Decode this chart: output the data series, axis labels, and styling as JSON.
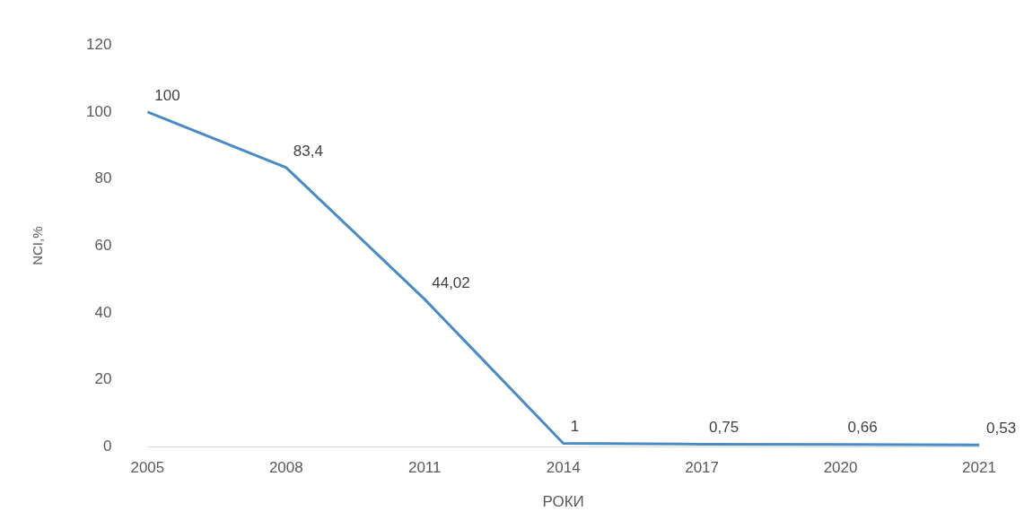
{
  "chart_data": {
    "type": "line",
    "xlabel": "РОКИ",
    "ylabel": "NCI,%",
    "categories": [
      "2005",
      "2008",
      "2011",
      "2014",
      "2017",
      "2020",
      "2021"
    ],
    "series": [
      {
        "color": "#4a8bc4",
        "values": [
          100,
          83.4,
          44.02,
          1,
          0.75,
          0.66,
          0.53
        ],
        "value_labels": [
          "100",
          "83,4",
          "44,02",
          "1",
          "0,75",
          "0,66",
          "0,53"
        ]
      }
    ],
    "ylim": [
      0,
      120
    ],
    "yticks": [
      0,
      20,
      40,
      60,
      80,
      100,
      120
    ],
    "grid": false,
    "legend": false,
    "marker": "none"
  }
}
